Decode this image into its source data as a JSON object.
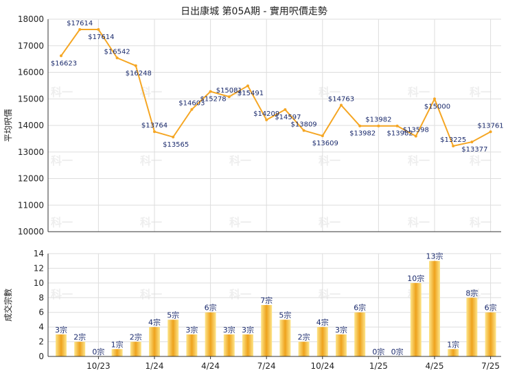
{
  "title": "日出康城 第05A期 - 實用呎價走勢",
  "colors": {
    "line": "#f5a623",
    "bar_light": "#fde58a",
    "bar_dark": "#eea21c",
    "grid": "#dddddd",
    "axis": "#333333",
    "watermark": "#eeeeee"
  },
  "watermark_text": "科一",
  "chart_data": [
    {
      "type": "line",
      "ylabel": "平均呎價",
      "ylim": [
        10000,
        18000
      ],
      "yticks": [
        10000,
        11000,
        12000,
        13000,
        14000,
        15000,
        16000,
        17000,
        18000
      ],
      "x": [
        "",
        "",
        "10/23",
        "",
        "",
        "1/24",
        "",
        "",
        "4/24",
        "",
        "",
        "7/24",
        "",
        "",
        "10/24",
        "",
        "",
        "1/25",
        "",
        "",
        "4/25",
        "",
        "",
        "7/25"
      ],
      "values": [
        16623,
        17614,
        17614,
        16542,
        16248,
        13764,
        13565,
        14603,
        15278,
        15081,
        15491,
        14209,
        14597,
        13809,
        13609,
        14763,
        13982,
        13982,
        13982,
        13598,
        15000,
        13225,
        13377,
        13761
      ],
      "labels": [
        "$16623",
        "$17614",
        "$17614",
        "$16542",
        "$16248",
        "$13764",
        "$13565",
        "$14603",
        "$15278",
        "$15081",
        "$15491",
        "$14209",
        "$14597",
        "$13809",
        "$13609",
        "$14763",
        "$13982",
        "$13982",
        "$13982",
        "$13598",
        "$15000",
        "$13225",
        "$13377",
        "$13761"
      ],
      "grid": true
    },
    {
      "type": "bar",
      "ylabel": "成交宗數",
      "ylim": [
        0,
        14
      ],
      "yticks": [
        0,
        2,
        4,
        6,
        8,
        10,
        12,
        14
      ],
      "categories": [
        "",
        "",
        "10/23",
        "",
        "",
        "1/24",
        "",
        "",
        "4/24",
        "",
        "",
        "7/24",
        "",
        "",
        "10/24",
        "",
        "",
        "1/25",
        "",
        "",
        "4/25",
        "",
        "",
        "7/25"
      ],
      "values": [
        3,
        2,
        0,
        1,
        2,
        4,
        5,
        3,
        6,
        3,
        3,
        7,
        5,
        2,
        4,
        3,
        6,
        0,
        0,
        10,
        13,
        1,
        8,
        6
      ],
      "labels": [
        "3宗",
        "2宗",
        "0宗",
        "1宗",
        "2宗",
        "4宗",
        "5宗",
        "3宗",
        "6宗",
        "3宗",
        "3宗",
        "7宗",
        "5宗",
        "2宗",
        "4宗",
        "3宗",
        "6宗",
        "0宗",
        "0宗",
        "10宗",
        "13宗",
        "1宗",
        "8宗",
        "6宗"
      ],
      "xticks": [
        "10/23",
        "1/24",
        "4/24",
        "7/24",
        "10/24",
        "1/25",
        "4/25",
        "7/25"
      ],
      "grid": true
    }
  ]
}
